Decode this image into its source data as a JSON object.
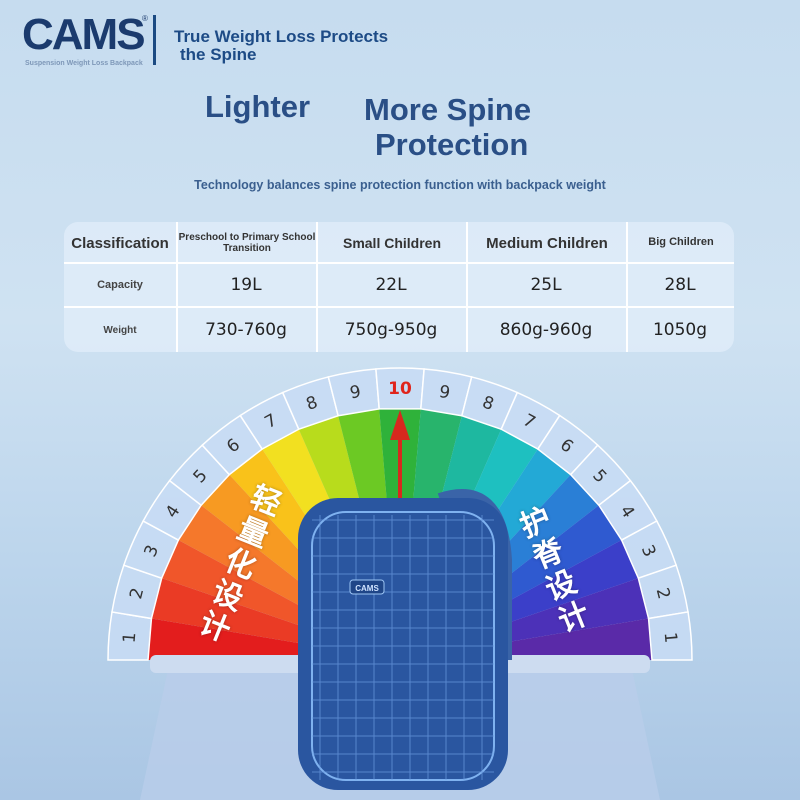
{
  "brand": {
    "logo": "CAMS",
    "sub": "Suspension Weight Loss Backpack",
    "tagline_1": "True Weight Loss Protects",
    "tagline_2": "the Spine"
  },
  "headline": {
    "left": "Lighter",
    "right_1": "More Spine",
    "right_2": "Protection"
  },
  "subtitle": "Technology balances spine protection function with backpack weight",
  "table": {
    "header": [
      "Classification",
      "Preschool to Primary School Transition",
      "Small Children",
      "Medium Children",
      "Big Children"
    ],
    "rows": [
      {
        "label": "Capacity",
        "values": [
          "19L",
          "22L",
          "25L",
          "28L"
        ]
      },
      {
        "label": "Weight",
        "values": [
          "730-760g",
          "750g-950g",
          "860g-960g",
          "1050g"
        ]
      }
    ]
  },
  "gauge": {
    "numbers": [
      "1",
      "2",
      "3",
      "4",
      "5",
      "6",
      "7",
      "8",
      "9",
      "10",
      "9",
      "8",
      "7",
      "6",
      "5",
      "4",
      "3",
      "2",
      "1"
    ],
    "highlight": "10",
    "highlight_color": "#e0241b",
    "colors": [
      "#e31d1d",
      "#ea3b25",
      "#f0562a",
      "#f5782b",
      "#f79a22",
      "#f9c21a",
      "#f2e020",
      "#b8dc1c",
      "#6cc924",
      "#2fb23a",
      "#28b46c",
      "#1eb8a0",
      "#1ec0c0",
      "#23a9d6",
      "#2a7fd6",
      "#2f5ad0",
      "#3b3fc9",
      "#4c31b8",
      "#5a2aa8"
    ],
    "left_label": "轻量化设计",
    "right_label": "护脊设计"
  },
  "backpack": {
    "logo": "CAMS"
  }
}
